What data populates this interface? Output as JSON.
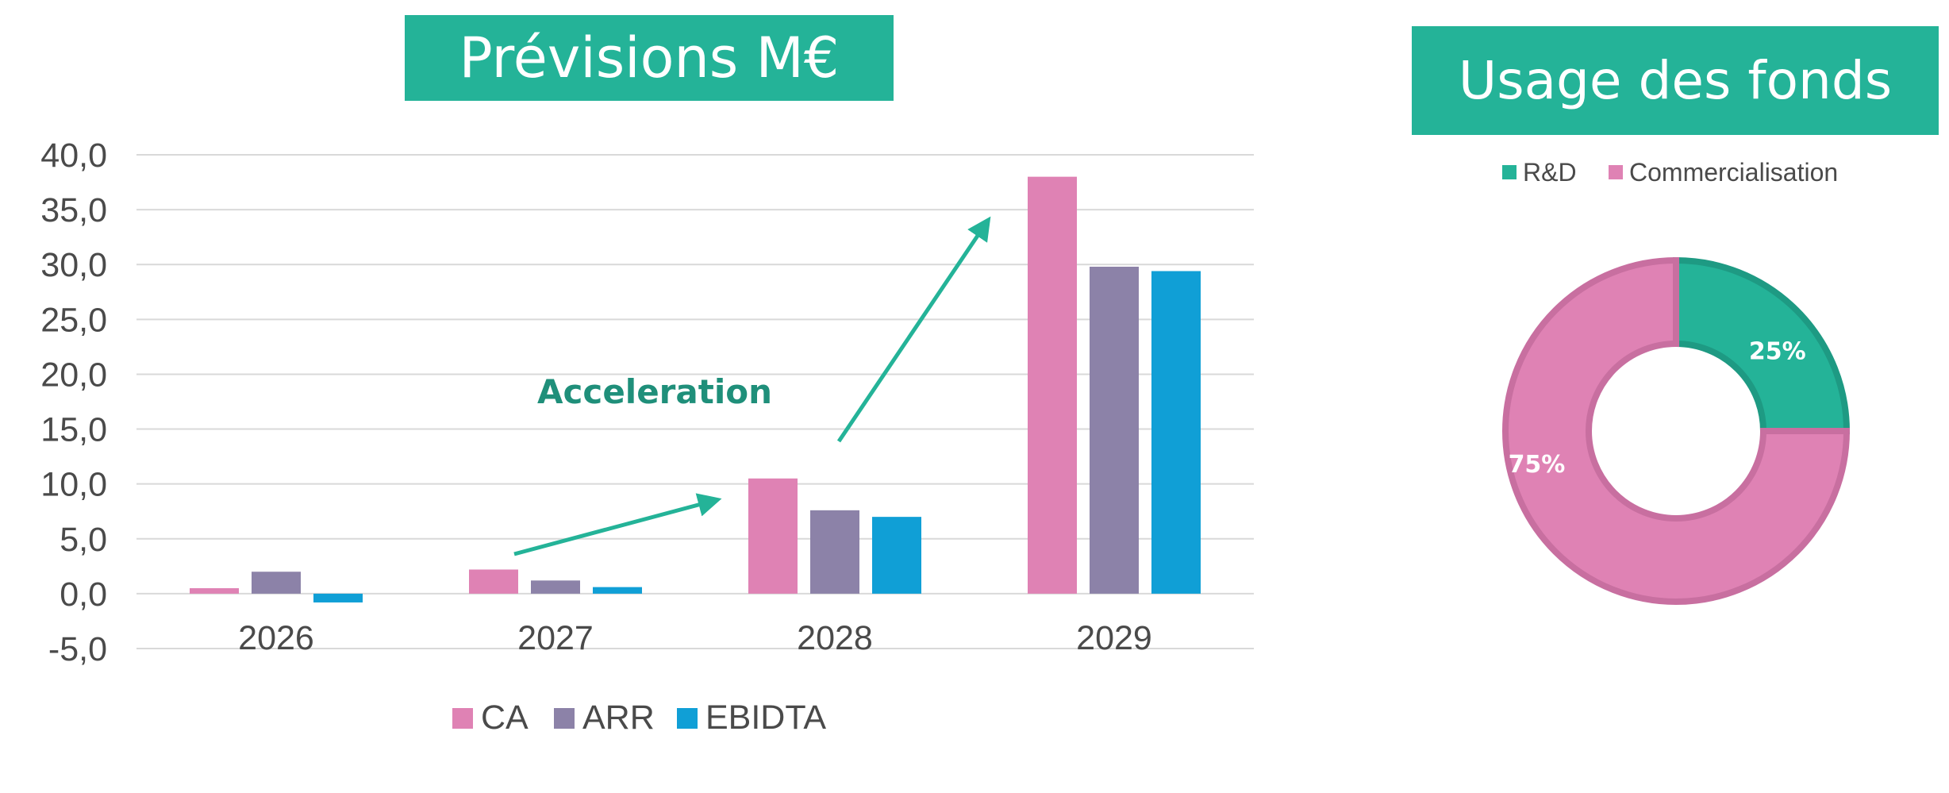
{
  "chart_data": [
    {
      "type": "bar",
      "title": "Prévisions M€",
      "categories": [
        "2026",
        "2027",
        "2028",
        "2029"
      ],
      "series": [
        {
          "name": "CA",
          "values": [
            0.5,
            2.2,
            10.5,
            38.0
          ],
          "color": "#df82b4"
        },
        {
          "name": "ARR",
          "values": [
            2.0,
            1.2,
            7.6,
            29.8
          ],
          "color": "#8c82a8"
        },
        {
          "name": "EBIDTA",
          "values": [
            -0.8,
            0.6,
            7.0,
            29.4
          ],
          "color": "#109fd6"
        }
      ],
      "ylim": [
        -5,
        40
      ],
      "yticks": [
        "40,0",
        "35,0",
        "30,0",
        "25,0",
        "20,0",
        "15,0",
        "10,0",
        "5,0",
        "0,0",
        "-5,0"
      ],
      "ytick_values": [
        40,
        35,
        30,
        25,
        20,
        15,
        10,
        5,
        0,
        -5
      ],
      "grid": true,
      "legend_position": "bottom",
      "annotation": "Acceleration"
    },
    {
      "type": "pie",
      "title": "Usage des fonds",
      "donut": true,
      "labels": [
        "R&D",
        "Commercialisation"
      ],
      "values": [
        25,
        75
      ],
      "value_labels": [
        "25%",
        "75%"
      ],
      "colors": [
        "#24b398",
        "#df82b4"
      ],
      "legend_position": "top"
    }
  ]
}
